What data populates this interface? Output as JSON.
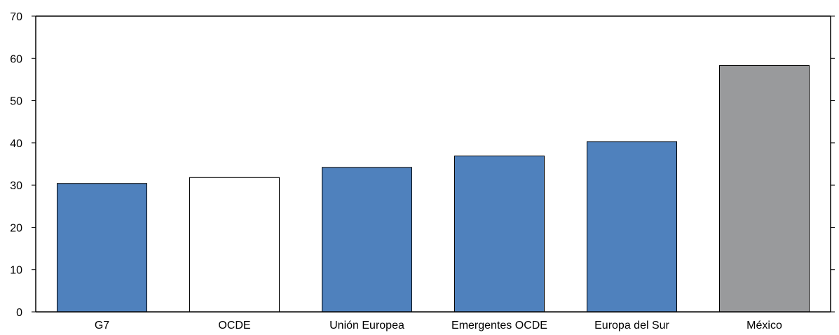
{
  "chart_data": {
    "type": "bar",
    "categories": [
      "G7",
      "OCDE",
      "Unión Europea",
      "Emergentes OCDE",
      "Europa del Sur",
      "México"
    ],
    "values": [
      30.4,
      31.8,
      34.2,
      36.9,
      40.3,
      58.3
    ],
    "bar_colors": [
      "#4f81bd",
      "#ffffff",
      "#4f81bd",
      "#4f81bd",
      "#4f81bd",
      "#999a9c"
    ],
    "title": "",
    "xlabel": "",
    "ylabel": "",
    "ylim": [
      0,
      70
    ],
    "yticks": [
      0,
      10,
      20,
      30,
      40,
      50,
      60,
      70
    ],
    "grid": false,
    "legend": "none"
  }
}
